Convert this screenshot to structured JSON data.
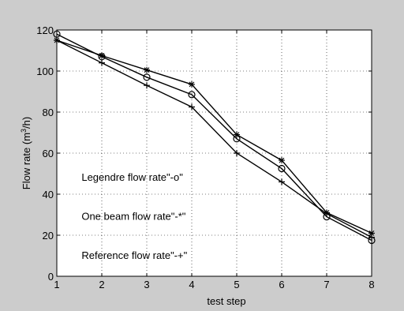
{
  "chart_data": {
    "type": "line",
    "xlabel": "test step",
    "ylabel": "Flow rate (m3/h)",
    "ylabel_parts": {
      "pre": "Flow rate (m",
      "sup": "3",
      "post": "/h)"
    },
    "x": [
      1,
      2,
      3,
      4,
      5,
      6,
      7,
      8
    ],
    "xlim": [
      1,
      8
    ],
    "ylim": [
      0,
      120
    ],
    "xticks": [
      1,
      2,
      3,
      4,
      5,
      6,
      7,
      8
    ],
    "yticks": [
      0,
      20,
      40,
      60,
      80,
      100,
      120
    ],
    "grid": true,
    "series": [
      {
        "marker": "o",
        "values": [
          118,
          107,
          97,
          88.5,
          67,
          52.5,
          29,
          17.5
        ]
      },
      {
        "marker": "*",
        "values": [
          115,
          107.5,
          100.5,
          93.5,
          69,
          56.5,
          31,
          21
        ]
      },
      {
        "marker": "+",
        "values": [
          115,
          104,
          93,
          82.5,
          60,
          46,
          30.5,
          19
        ]
      }
    ],
    "annotations": [
      {
        "text": "Legendre flow rate\"-o\"",
        "x": 1.55,
        "y": 48
      },
      {
        "text": "One beam flow rate\"-*\"",
        "x": 1.55,
        "y": 29
      },
      {
        "text": "Reference  flow rate\"-+\"",
        "x": 1.55,
        "y": 10
      }
    ],
    "colors": {
      "figure_background": "#cccccc",
      "plot_background": "#ffffff",
      "line": "#000000",
      "grid": "#000000"
    }
  }
}
